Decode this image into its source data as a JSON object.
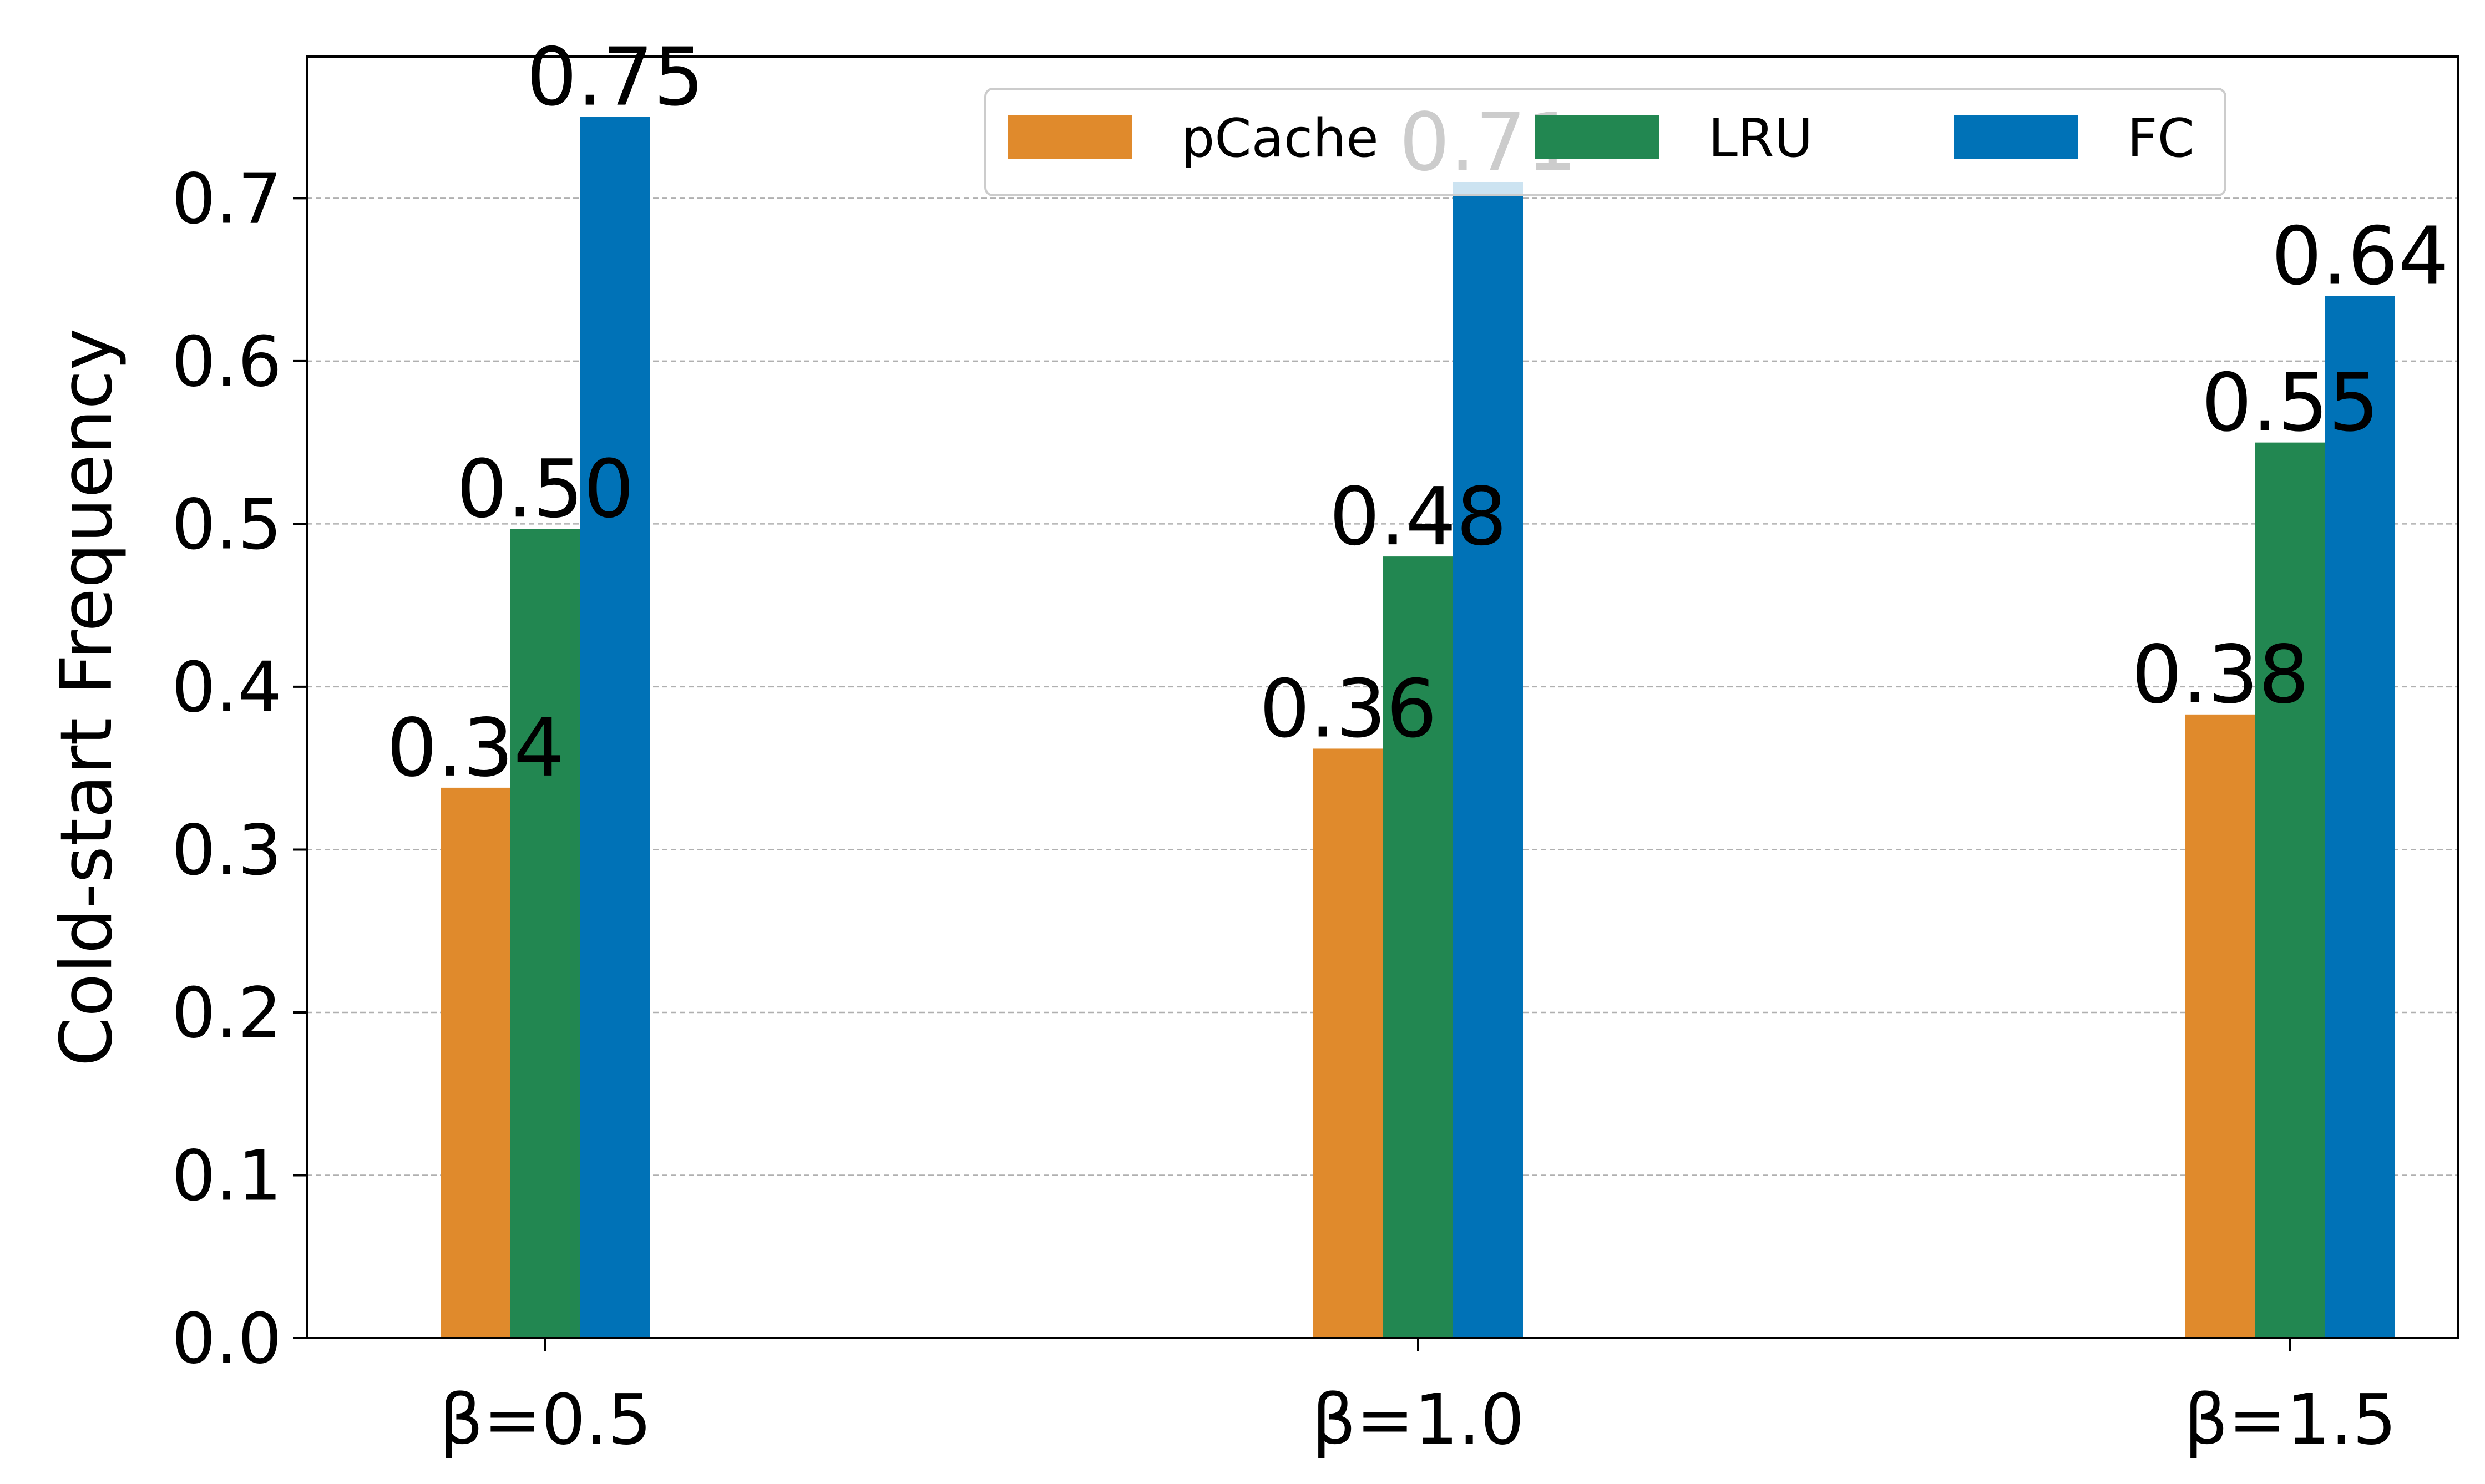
{
  "chart_data": {
    "type": "bar",
    "categories": [
      "β=0.5",
      "β=1.0",
      "β=1.5"
    ],
    "series": [
      {
        "name": "pCache",
        "values": [
          0.338,
          0.362,
          0.383
        ],
        "labels": [
          "0.34",
          "0.36",
          "0.38"
        ],
        "color": "#e08a2c"
      },
      {
        "name": "LRU",
        "values": [
          0.497,
          0.48,
          0.55
        ],
        "labels": [
          "0.50",
          "0.48",
          "0.55"
        ],
        "color": "#228751"
      },
      {
        "name": "FC",
        "values": [
          0.75,
          0.71,
          0.64
        ],
        "labels": [
          "0.75",
          "0.71",
          "0.64"
        ],
        "color": "#0072b7"
      }
    ],
    "ylabel": "Cold-start Frequency",
    "ylim": [
      0,
      0.787
    ],
    "yticks": [
      "0.0",
      "0.1",
      "0.2",
      "0.3",
      "0.4",
      "0.5",
      "0.6",
      "0.7"
    ],
    "grid": true,
    "legend_position": "top-center"
  }
}
